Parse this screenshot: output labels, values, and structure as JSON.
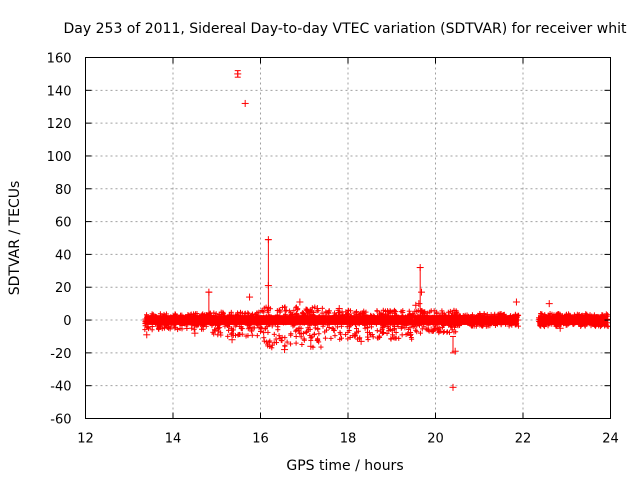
{
  "chart_data": {
    "type": "scatter",
    "title": "Day 253 of 2011, Sidereal Day-to-day VTEC variation (SDTVAR) for receiver whit",
    "xlabel": "GPS time / hours",
    "ylabel": "SDTVAR / TECUs",
    "xlim": [
      12,
      24
    ],
    "ylim": [
      -60,
      160
    ],
    "xticks": [
      12,
      14,
      16,
      18,
      20,
      22,
      24
    ],
    "yticks": [
      -60,
      -40,
      -20,
      0,
      20,
      40,
      60,
      80,
      100,
      120,
      140,
      160
    ],
    "xtick_labels": [
      "12",
      "14",
      "16",
      "18",
      "20",
      "22",
      "24"
    ],
    "ytick_labels": [
      "-60",
      "-40",
      "-20",
      "0",
      "20",
      "40",
      "60",
      "80",
      "100",
      "120",
      "140",
      "160"
    ],
    "grid": true,
    "marker": "+",
    "color": "#ff0000",
    "band": {
      "description": "dense cluster of data points around zero",
      "segments": [
        {
          "x": [
            13.35,
            14.8
          ],
          "low": -6,
          "high": 4
        },
        {
          "x": [
            14.8,
            16.0
          ],
          "low": -10,
          "high": 5
        },
        {
          "x": [
            16.0,
            17.5
          ],
          "low": -17,
          "high": 8
        },
        {
          "x": [
            17.5,
            19.5
          ],
          "low": -12,
          "high": 6
        },
        {
          "x": [
            19.5,
            20.5
          ],
          "low": -8,
          "high": 6
        },
        {
          "x": [
            20.5,
            21.9
          ],
          "low": -4,
          "high": 4
        },
        {
          "x": [
            22.35,
            23.95
          ],
          "low": -4,
          "high": 4
        }
      ]
    },
    "points": [
      {
        "x": 15.48,
        "y": 150
      },
      {
        "x": 15.65,
        "y": 132
      },
      {
        "x": 15.75,
        "y": 14
      },
      {
        "x": 16.18,
        "y": 49
      },
      {
        "x": 16.18,
        "y": 21
      },
      {
        "x": 16.9,
        "y": 11
      },
      {
        "x": 14.82,
        "y": 17
      },
      {
        "x": 19.65,
        "y": 32
      },
      {
        "x": 19.68,
        "y": 17
      },
      {
        "x": 19.62,
        "y": 10
      },
      {
        "x": 20.4,
        "y": -41
      },
      {
        "x": 20.45,
        "y": -19
      },
      {
        "x": 21.85,
        "y": 11
      },
      {
        "x": 22.6,
        "y": 10
      },
      {
        "x": 19.55,
        "y": 9
      },
      {
        "x": 17.8,
        "y": 7
      },
      {
        "x": 17.3,
        "y": 7
      },
      {
        "x": 16.55,
        "y": -18
      },
      {
        "x": 17.15,
        "y": -16
      },
      {
        "x": 15.35,
        "y": -12
      },
      {
        "x": 14.5,
        "y": -8
      },
      {
        "x": 13.4,
        "y": -9
      },
      {
        "x": 18.3,
        "y": -13
      },
      {
        "x": 19.9,
        "y": -6
      },
      {
        "x": 21.2,
        "y": -3
      },
      {
        "x": 22.85,
        "y": -5
      }
    ],
    "error_bars": [
      {
        "x": 15.48,
        "low": 148,
        "high": 152
      },
      {
        "x": 16.18,
        "low": 0,
        "high": 49
      },
      {
        "x": 14.82,
        "low": 0,
        "high": 17
      },
      {
        "x": 19.65,
        "low": 0,
        "high": 32
      },
      {
        "x": 20.4,
        "low": -20,
        "high": -10
      }
    ]
  }
}
